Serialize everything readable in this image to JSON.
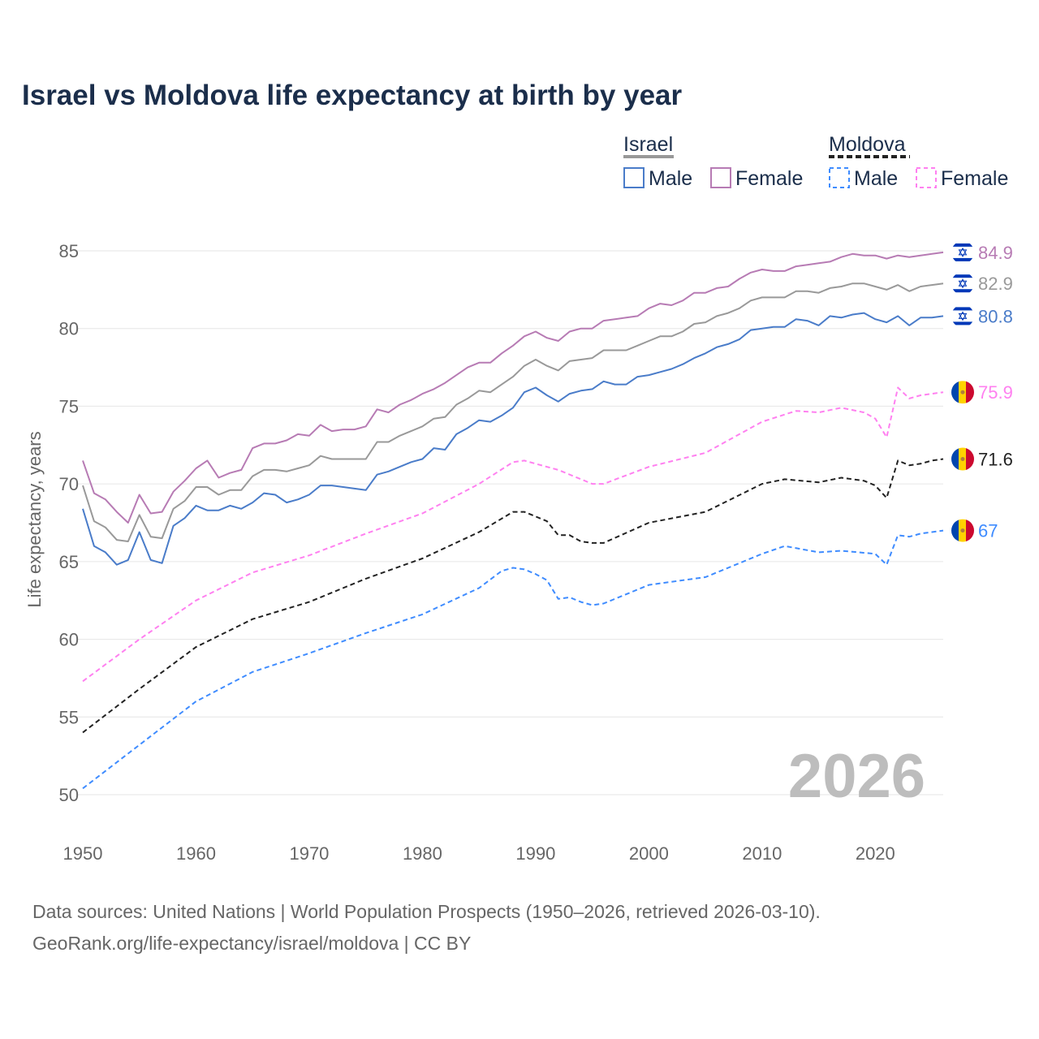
{
  "chart_data": {
    "type": "line",
    "title": "Israel vs Moldova life expectancy at birth by year",
    "xlabel": "",
    "ylabel": "Life expectancy, years",
    "xlim": [
      1950,
      2026
    ],
    "ylim": [
      50,
      85
    ],
    "x_ticks": [
      "1950",
      "1960",
      "1970",
      "1980",
      "1990",
      "2000",
      "2010",
      "2020"
    ],
    "y_ticks": [
      "50",
      "55",
      "60",
      "65",
      "70",
      "75",
      "80",
      "85"
    ],
    "year_label": "2026",
    "legend": {
      "placement": "top-right",
      "groups": [
        {
          "name": "Israel",
          "items": [
            "Male",
            "Female"
          ]
        },
        {
          "name": "Moldova",
          "items": [
            "Male",
            "Female"
          ]
        }
      ]
    },
    "series": [
      {
        "name": "Israel Female",
        "color": "#b77bb4",
        "dashed": false,
        "flag": "israel",
        "end_label": "84.9",
        "x": [
          1950,
          1951,
          1952,
          1953,
          1954,
          1955,
          1956,
          1957,
          1958,
          1959,
          1960,
          1961,
          1962,
          1963,
          1964,
          1965,
          1966,
          1967,
          1968,
          1969,
          1970,
          1971,
          1972,
          1973,
          1974,
          1975,
          1976,
          1977,
          1978,
          1979,
          1980,
          1981,
          1982,
          1983,
          1984,
          1985,
          1986,
          1987,
          1988,
          1989,
          1990,
          1991,
          1992,
          1993,
          1994,
          1995,
          1996,
          1997,
          1998,
          1999,
          2000,
          2001,
          2002,
          2003,
          2004,
          2005,
          2006,
          2007,
          2008,
          2009,
          2010,
          2011,
          2012,
          2013,
          2014,
          2015,
          2016,
          2017,
          2018,
          2019,
          2020,
          2021,
          2022,
          2023,
          2024,
          2025,
          2026
        ],
        "y": [
          71.5,
          69.4,
          69.0,
          68.2,
          67.5,
          69.3,
          68.1,
          68.2,
          69.5,
          70.2,
          71.0,
          71.5,
          70.4,
          70.7,
          70.9,
          72.3,
          72.6,
          72.6,
          72.8,
          73.2,
          73.1,
          73.8,
          73.4,
          73.5,
          73.5,
          73.7,
          74.8,
          74.6,
          75.1,
          75.4,
          75.8,
          76.1,
          76.5,
          77.0,
          77.5,
          77.8,
          77.8,
          78.4,
          78.9,
          79.5,
          79.8,
          79.4,
          79.2,
          79.8,
          80.0,
          80.0,
          80.5,
          80.6,
          80.7,
          80.8,
          81.3,
          81.6,
          81.5,
          81.8,
          82.3,
          82.3,
          82.6,
          82.7,
          83.2,
          83.6,
          83.8,
          83.7,
          83.7,
          84.0,
          84.1,
          84.2,
          84.3,
          84.6,
          84.8,
          84.7,
          84.7,
          84.5,
          84.7,
          84.6,
          84.7,
          84.8,
          84.9
        ]
      },
      {
        "name": "Israel",
        "color": "#999999",
        "dashed": false,
        "flag": "israel",
        "end_label": "82.9",
        "x": [
          1950,
          1951,
          1952,
          1953,
          1954,
          1955,
          1956,
          1957,
          1958,
          1959,
          1960,
          1961,
          1962,
          1963,
          1964,
          1965,
          1966,
          1967,
          1968,
          1969,
          1970,
          1971,
          1972,
          1973,
          1974,
          1975,
          1976,
          1977,
          1978,
          1979,
          1980,
          1981,
          1982,
          1983,
          1984,
          1985,
          1986,
          1987,
          1988,
          1989,
          1990,
          1991,
          1992,
          1993,
          1994,
          1995,
          1996,
          1997,
          1998,
          1999,
          2000,
          2001,
          2002,
          2003,
          2004,
          2005,
          2006,
          2007,
          2008,
          2009,
          2010,
          2011,
          2012,
          2013,
          2014,
          2015,
          2016,
          2017,
          2018,
          2019,
          2020,
          2021,
          2022,
          2023,
          2024,
          2025,
          2026
        ],
        "y": [
          69.9,
          67.6,
          67.2,
          66.4,
          66.3,
          68.0,
          66.6,
          66.5,
          68.4,
          68.9,
          69.8,
          69.8,
          69.3,
          69.6,
          69.6,
          70.5,
          70.9,
          70.9,
          70.8,
          71.0,
          71.2,
          71.8,
          71.6,
          71.6,
          71.6,
          71.6,
          72.7,
          72.7,
          73.1,
          73.4,
          73.7,
          74.2,
          74.3,
          75.1,
          75.5,
          76.0,
          75.9,
          76.4,
          76.9,
          77.6,
          78.0,
          77.6,
          77.3,
          77.9,
          78.0,
          78.1,
          78.6,
          78.6,
          78.6,
          78.9,
          79.2,
          79.5,
          79.5,
          79.8,
          80.3,
          80.4,
          80.8,
          81.0,
          81.3,
          81.8,
          82.0,
          82.0,
          82.0,
          82.4,
          82.4,
          82.3,
          82.6,
          82.7,
          82.9,
          82.9,
          82.7,
          82.5,
          82.8,
          82.4,
          82.7,
          82.8,
          82.9
        ]
      },
      {
        "name": "Israel Male",
        "color": "#4a7cc9",
        "dashed": false,
        "flag": "israel",
        "end_label": "80.8",
        "x": [
          1950,
          1951,
          1952,
          1953,
          1954,
          1955,
          1956,
          1957,
          1958,
          1959,
          1960,
          1961,
          1962,
          1963,
          1964,
          1965,
          1966,
          1967,
          1968,
          1969,
          1970,
          1971,
          1972,
          1973,
          1974,
          1975,
          1976,
          1977,
          1978,
          1979,
          1980,
          1981,
          1982,
          1983,
          1984,
          1985,
          1986,
          1987,
          1988,
          1989,
          1990,
          1991,
          1992,
          1993,
          1994,
          1995,
          1996,
          1997,
          1998,
          1999,
          2000,
          2001,
          2002,
          2003,
          2004,
          2005,
          2006,
          2007,
          2008,
          2009,
          2010,
          2011,
          2012,
          2013,
          2014,
          2015,
          2016,
          2017,
          2018,
          2019,
          2020,
          2021,
          2022,
          2023,
          2024,
          2025,
          2026
        ],
        "y": [
          68.4,
          66.0,
          65.6,
          64.8,
          65.1,
          66.9,
          65.1,
          64.9,
          67.3,
          67.8,
          68.6,
          68.3,
          68.3,
          68.6,
          68.4,
          68.8,
          69.4,
          69.3,
          68.8,
          69.0,
          69.3,
          69.9,
          69.9,
          69.8,
          69.7,
          69.6,
          70.6,
          70.8,
          71.1,
          71.4,
          71.6,
          72.3,
          72.2,
          73.2,
          73.6,
          74.1,
          74.0,
          74.4,
          74.9,
          75.9,
          76.2,
          75.7,
          75.3,
          75.8,
          76.0,
          76.1,
          76.6,
          76.4,
          76.4,
          76.9,
          77.0,
          77.2,
          77.4,
          77.7,
          78.1,
          78.4,
          78.8,
          79.0,
          79.3,
          79.9,
          80.0,
          80.1,
          80.1,
          80.6,
          80.5,
          80.2,
          80.8,
          80.7,
          80.9,
          81.0,
          80.6,
          80.4,
          80.8,
          80.2,
          80.7,
          80.7,
          80.8
        ]
      },
      {
        "name": "Moldova Female",
        "color": "#ff80f0",
        "dashed": true,
        "flag": "moldova",
        "end_label": "75.9",
        "x": [
          1950,
          1955,
          1960,
          1965,
          1970,
          1975,
          1980,
          1985,
          1988,
          1989,
          1990,
          1992,
          1995,
          1996,
          2000,
          2005,
          2010,
          2013,
          2015,
          2017,
          2019,
          2020,
          2021,
          2022,
          2023,
          2024,
          2025,
          2026
        ],
        "y": [
          57.3,
          60.0,
          62.5,
          64.3,
          65.4,
          66.8,
          68.1,
          70.0,
          71.4,
          71.5,
          71.3,
          70.9,
          70.0,
          70.0,
          71.1,
          72.0,
          74.0,
          74.7,
          74.6,
          74.9,
          74.6,
          74.2,
          73.0,
          76.2,
          75.5,
          75.7,
          75.8,
          75.9
        ]
      },
      {
        "name": "Moldova",
        "color": "#222222",
        "dashed": true,
        "flag": "moldova",
        "end_label": "71.6",
        "x": [
          1950,
          1955,
          1960,
          1965,
          1970,
          1975,
          1980,
          1985,
          1988,
          1989,
          1990,
          1991,
          1992,
          1993,
          1994,
          1995,
          1996,
          2000,
          2005,
          2010,
          2012,
          2015,
          2017,
          2019,
          2020,
          2021,
          2022,
          2023,
          2024,
          2025,
          2026
        ],
        "y": [
          54.0,
          56.8,
          59.5,
          61.3,
          62.4,
          63.9,
          65.2,
          66.9,
          68.2,
          68.2,
          67.9,
          67.6,
          66.7,
          66.7,
          66.3,
          66.2,
          66.2,
          67.5,
          68.2,
          70.0,
          70.3,
          70.1,
          70.4,
          70.2,
          69.9,
          69.1,
          71.5,
          71.2,
          71.3,
          71.5,
          71.6
        ]
      },
      {
        "name": "Moldova Male",
        "color": "#3f8cff",
        "dashed": true,
        "flag": "moldova",
        "end_label": "67",
        "x": [
          1950,
          1955,
          1960,
          1965,
          1970,
          1975,
          1980,
          1985,
          1987,
          1988,
          1989,
          1990,
          1991,
          1992,
          1993,
          1994,
          1995,
          1996,
          2000,
          2005,
          2010,
          2012,
          2015,
          2017,
          2020,
          2021,
          2022,
          2023,
          2024,
          2025,
          2026
        ],
        "y": [
          50.4,
          53.2,
          56.0,
          57.9,
          59.1,
          60.4,
          61.6,
          63.3,
          64.4,
          64.6,
          64.5,
          64.2,
          63.8,
          62.6,
          62.7,
          62.4,
          62.2,
          62.3,
          63.5,
          64.0,
          65.5,
          66.0,
          65.6,
          65.7,
          65.5,
          64.8,
          66.7,
          66.6,
          66.8,
          66.9,
          67.0
        ]
      }
    ],
    "source_line1": "Data sources: United Nations | World Population Prospects (1950–2026, retrieved 2026-03-10).",
    "source_line2": "GeoRank.org/life-expectancy/israel/moldova | CC BY"
  }
}
